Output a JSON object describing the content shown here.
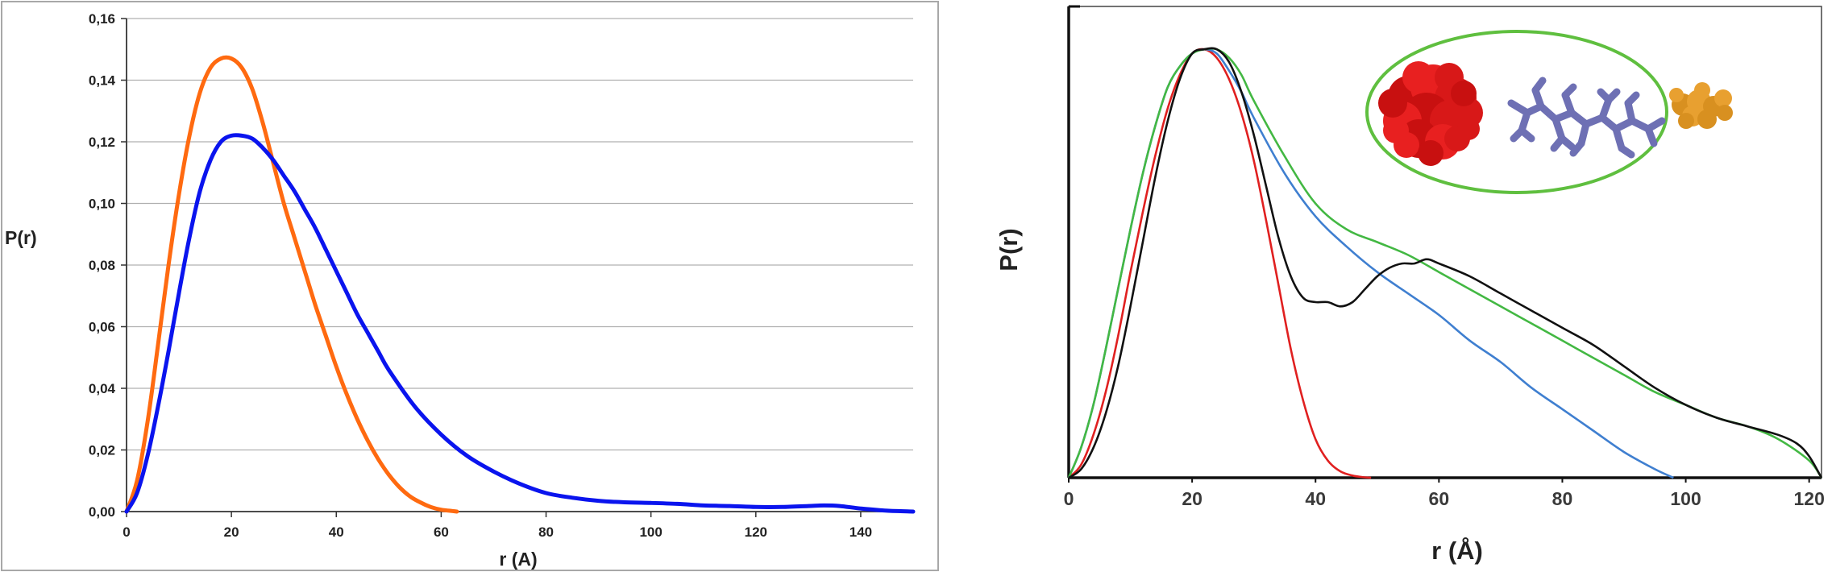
{
  "chart_data": [
    {
      "type": "line",
      "xlabel": "r (A)",
      "ylabel": "P(r)",
      "xlim": [
        0,
        150
      ],
      "ylim": [
        0,
        0.16
      ],
      "x_ticks": [
        "0",
        "20",
        "40",
        "60",
        "80",
        "100",
        "120",
        "140"
      ],
      "y_ticks": [
        "0,00",
        "0,02",
        "0,04",
        "0,06",
        "0,08",
        "0,10",
        "0,12",
        "0,14",
        "0,16"
      ],
      "grid": "horizontal",
      "colors": {
        "series_1": "#ff6a10",
        "series_2": "#0a14ee",
        "grid": "#b0b0b0"
      },
      "series": [
        {
          "x": [
            0,
            2,
            4,
            6,
            8,
            10,
            12,
            14,
            16,
            18,
            20,
            22,
            24,
            26,
            28,
            30,
            32,
            34,
            36,
            38,
            40,
            42,
            44,
            46,
            48,
            50,
            52,
            54,
            56,
            58,
            60,
            62,
            63
          ],
          "y": [
            0,
            0.01,
            0.029,
            0.054,
            0.08,
            0.103,
            0.122,
            0.136,
            0.144,
            0.147,
            0.147,
            0.144,
            0.137,
            0.126,
            0.113,
            0.1,
            0.089,
            0.078,
            0.067,
            0.057,
            0.047,
            0.038,
            0.03,
            0.023,
            0.017,
            0.012,
            0.008,
            0.005,
            0.003,
            0.0015,
            0.0006,
            0.0002,
            0
          ]
        },
        {
          "x": [
            0,
            2,
            4,
            6,
            8,
            10,
            12,
            14,
            16,
            18,
            20,
            22,
            24,
            26,
            28,
            30,
            32,
            34,
            36,
            38,
            40,
            42,
            44,
            46,
            48,
            50,
            55,
            60,
            65,
            70,
            75,
            80,
            85,
            90,
            95,
            100,
            105,
            110,
            115,
            120,
            125,
            130,
            133,
            136,
            140,
            145,
            150
          ],
          "y": [
            0,
            0.006,
            0.018,
            0.034,
            0.052,
            0.071,
            0.089,
            0.104,
            0.114,
            0.12,
            0.122,
            0.122,
            0.121,
            0.118,
            0.114,
            0.109,
            0.104,
            0.098,
            0.092,
            0.085,
            0.078,
            0.071,
            0.064,
            0.058,
            0.052,
            0.046,
            0.034,
            0.025,
            0.018,
            0.013,
            0.009,
            0.006,
            0.0045,
            0.0035,
            0.003,
            0.0028,
            0.0025,
            0.002,
            0.0018,
            0.0015,
            0.0015,
            0.0018,
            0.002,
            0.0018,
            0.001,
            0.0003,
            0
          ]
        }
      ]
    },
    {
      "type": "line",
      "xlabel": "r (Å)",
      "ylabel": "P(r)",
      "xlim": [
        0,
        122
      ],
      "ylim": [
        0,
        1.1
      ],
      "x_ticks": [
        "0",
        "20",
        "40",
        "60",
        "80",
        "100",
        "120"
      ],
      "grid": "none",
      "inset": "molecule-illustration",
      "colors": {
        "red": "#e02020",
        "blue": "#3f7fd0",
        "green": "#43b843",
        "black": "#111111",
        "inset_ellipse": "#5fbf3f",
        "inset_red": "#e01818",
        "inset_chain": "#6e70b4",
        "inset_orange": "#e8a030"
      },
      "series": [
        {
          "color": "red",
          "x": [
            0,
            2,
            4,
            6,
            8,
            10,
            12,
            14,
            16,
            18,
            20,
            22,
            24,
            26,
            28,
            30,
            32,
            34,
            36,
            38,
            40,
            42,
            44,
            46,
            48,
            49
          ],
          "y": [
            0,
            0.03,
            0.1,
            0.2,
            0.33,
            0.48,
            0.62,
            0.75,
            0.86,
            0.94,
            0.99,
            1.0,
            0.98,
            0.93,
            0.85,
            0.74,
            0.6,
            0.45,
            0.3,
            0.18,
            0.09,
            0.04,
            0.015,
            0.005,
            0.001,
            0
          ]
        },
        {
          "color": "blue",
          "x": [
            0,
            2,
            4,
            6,
            8,
            10,
            12,
            14,
            16,
            18,
            20,
            22,
            24,
            26,
            28,
            30,
            35,
            40,
            45,
            50,
            55,
            60,
            65,
            70,
            75,
            80,
            85,
            90,
            95,
            98
          ],
          "y": [
            0,
            0.07,
            0.17,
            0.3,
            0.44,
            0.58,
            0.71,
            0.82,
            0.91,
            0.96,
            0.99,
            1.0,
            0.99,
            0.95,
            0.9,
            0.84,
            0.71,
            0.61,
            0.54,
            0.48,
            0.43,
            0.38,
            0.32,
            0.27,
            0.21,
            0.16,
            0.11,
            0.06,
            0.02,
            0
          ]
        },
        {
          "color": "green",
          "x": [
            0,
            2,
            4,
            6,
            8,
            10,
            12,
            14,
            16,
            18,
            20,
            22,
            24,
            26,
            28,
            30,
            35,
            40,
            45,
            50,
            55,
            60,
            65,
            70,
            75,
            80,
            85,
            90,
            95,
            100,
            105,
            110,
            115,
            120,
            122
          ],
          "y": [
            0,
            0.07,
            0.17,
            0.3,
            0.44,
            0.58,
            0.71,
            0.82,
            0.91,
            0.96,
            0.99,
            1.0,
            1.0,
            0.98,
            0.94,
            0.88,
            0.75,
            0.64,
            0.58,
            0.55,
            0.52,
            0.48,
            0.44,
            0.4,
            0.36,
            0.32,
            0.28,
            0.24,
            0.2,
            0.17,
            0.14,
            0.12,
            0.09,
            0.04,
            0
          ]
        },
        {
          "color": "black",
          "x": [
            0,
            2,
            4,
            6,
            8,
            10,
            12,
            14,
            16,
            18,
            20,
            22,
            24,
            26,
            28,
            30,
            32,
            34,
            36,
            38,
            40,
            42,
            44,
            46,
            48,
            50,
            52,
            54,
            56,
            58,
            60,
            65,
            70,
            75,
            80,
            85,
            90,
            95,
            100,
            105,
            110,
            115,
            118,
            120,
            122
          ],
          "y": [
            0,
            0.02,
            0.07,
            0.15,
            0.26,
            0.4,
            0.55,
            0.7,
            0.83,
            0.93,
            0.99,
            1.0,
            1.0,
            0.97,
            0.9,
            0.8,
            0.68,
            0.56,
            0.47,
            0.42,
            0.41,
            0.41,
            0.4,
            0.41,
            0.44,
            0.47,
            0.49,
            0.5,
            0.5,
            0.51,
            0.5,
            0.47,
            0.43,
            0.39,
            0.35,
            0.31,
            0.26,
            0.21,
            0.17,
            0.14,
            0.12,
            0.1,
            0.08,
            0.05,
            0
          ]
        }
      ]
    }
  ]
}
